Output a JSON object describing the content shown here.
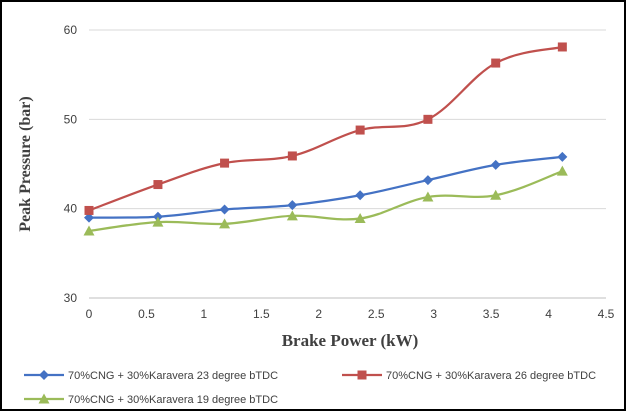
{
  "chart_data": {
    "type": "line",
    "title": "",
    "xlabel": "Brake Power (kW)",
    "ylabel": "Peak Pressure (bar)",
    "xlim": [
      0,
      4.5
    ],
    "ylim": [
      30,
      60
    ],
    "x_ticks": [
      "0",
      "0.5",
      "1",
      "1.5",
      "2",
      "2.5",
      "3",
      "3.5",
      "4",
      "4.5"
    ],
    "y_ticks": [
      "30",
      "40",
      "50",
      "60"
    ],
    "grid": "horizontal",
    "legend_position": "bottom",
    "series": [
      {
        "name": "70%CNG + 30%Karavera 23 degree bTDC",
        "color": "#4472C4",
        "marker": "diamond",
        "x": [
          0,
          0.6,
          1.18,
          1.77,
          2.36,
          2.95,
          3.54,
          4.12
        ],
        "values": [
          39.0,
          39.1,
          39.9,
          40.4,
          41.5,
          43.2,
          44.9,
          45.8
        ]
      },
      {
        "name": "70%CNG + 30%Karavera 26 degree bTDC",
        "color": "#C0504D",
        "marker": "square",
        "x": [
          0,
          0.6,
          1.18,
          1.77,
          2.36,
          2.95,
          3.54,
          4.12
        ],
        "values": [
          39.8,
          42.7,
          45.1,
          45.9,
          48.8,
          50.0,
          56.3,
          58.1
        ]
      },
      {
        "name": "70%CNG + 30%Karavera 19 degree bTDC",
        "color": "#9BBB59",
        "marker": "triangle",
        "x": [
          0,
          0.6,
          1.18,
          1.77,
          2.36,
          2.95,
          3.54,
          4.12
        ],
        "values": [
          37.5,
          38.5,
          38.3,
          39.2,
          38.9,
          41.3,
          41.5,
          44.2
        ]
      }
    ]
  }
}
